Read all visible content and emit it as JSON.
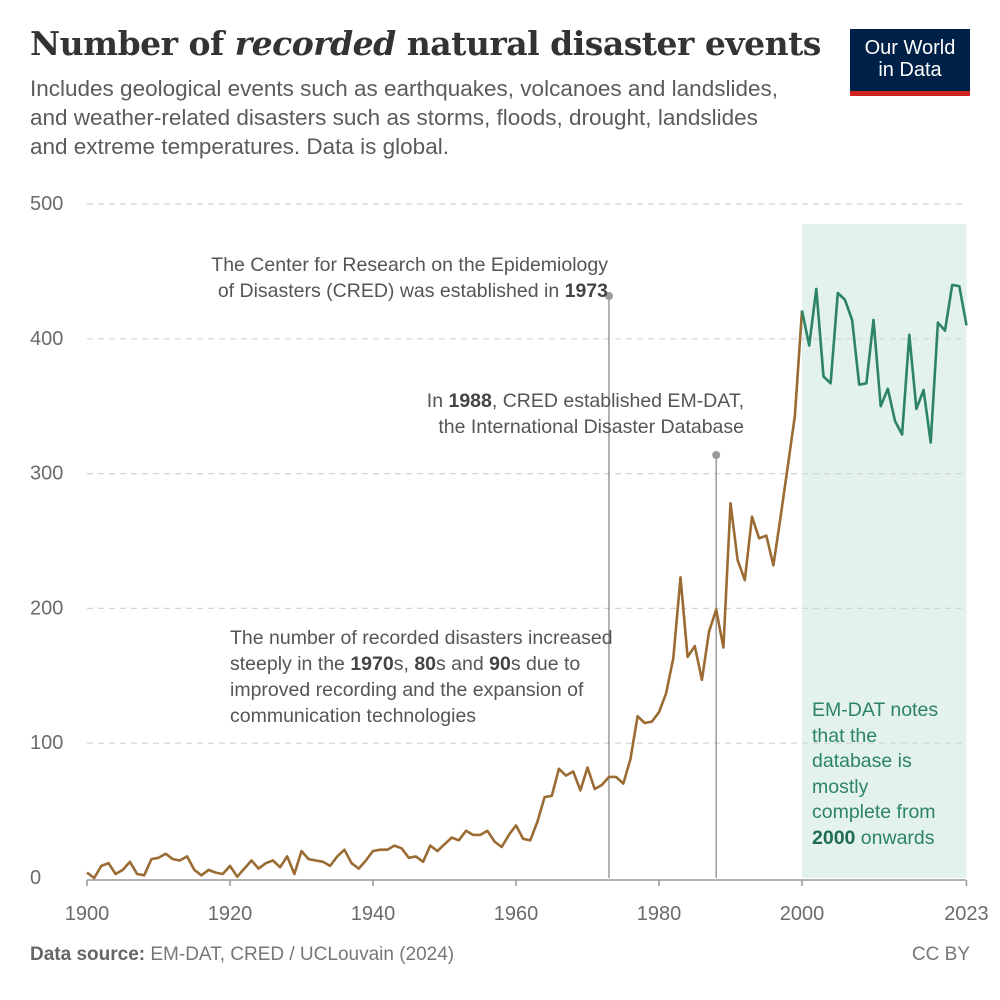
{
  "title": {
    "before": "Number of ",
    "italic": "recorded",
    "after": " natural disaster events"
  },
  "subtitle": "Includes geological events such as earthquakes, volcanoes and landslides, and weather-related disasters such as storms, floods, drought, landslides and extreme temperatures. Data is global.",
  "logo": {
    "line1": "Our World",
    "line2": "in Data",
    "colors": {
      "bg": "#002147",
      "accent": "#ce261e"
    }
  },
  "annotations": {
    "cred": {
      "line1": "The Center for Research on the Epidemiology",
      "line2a": "of Disasters (CRED) was established in ",
      "line2b": "1973"
    },
    "emdat": {
      "line1a": "In ",
      "line1b": "1988",
      "line1c": ", CRED established EM-DAT,",
      "line2": "the International Disaster Database"
    },
    "increase": {
      "l1": "The number of recorded disasters increased",
      "l2a": "steeply in the ",
      "l2b": "1970",
      "l2c": "s, ",
      "l2d": "80",
      "l2e": "s and ",
      "l2f": "90",
      "l2g": "s due to",
      "l3": "improved recording and the expansion of",
      "l4": "communication technologies"
    },
    "complete": {
      "l1": "EM-DAT notes",
      "l2": "that the",
      "l3": "database is",
      "l4": "mostly",
      "l5": "complete from",
      "l6a": "2000",
      "l6b": " onwards"
    }
  },
  "footer": {
    "source_label": "Data source:",
    "source": " EM-DAT, CRED / UCLouvain (2024)",
    "license": "CC BY"
  },
  "chart_data": {
    "type": "line",
    "xlim": [
      1900,
      2023
    ],
    "ylim": [
      0,
      500
    ],
    "x_ticks": [
      "1900",
      "1920",
      "1940",
      "1960",
      "1980",
      "2000",
      "2023"
    ],
    "y_ticks": [
      "0",
      "100",
      "200",
      "300",
      "400",
      "500"
    ],
    "grid": "horizontal dashed",
    "highlight_range": [
      2000,
      2023
    ],
    "event_markers": [
      1973,
      1988
    ],
    "colors": {
      "before_2000": "#9a6b33",
      "from_2000": "#2c8465",
      "shade": "#e3f2ec"
    },
    "x": [
      1900,
      1901,
      1902,
      1903,
      1904,
      1905,
      1906,
      1907,
      1908,
      1909,
      1910,
      1911,
      1912,
      1913,
      1914,
      1915,
      1916,
      1917,
      1918,
      1919,
      1920,
      1921,
      1922,
      1923,
      1924,
      1925,
      1926,
      1927,
      1928,
      1929,
      1930,
      1931,
      1932,
      1933,
      1934,
      1935,
      1936,
      1937,
      1938,
      1939,
      1940,
      1941,
      1942,
      1943,
      1944,
      1945,
      1946,
      1947,
      1948,
      1949,
      1950,
      1951,
      1952,
      1953,
      1954,
      1955,
      1956,
      1957,
      1958,
      1959,
      1960,
      1961,
      1962,
      1963,
      1964,
      1965,
      1966,
      1967,
      1968,
      1969,
      1970,
      1971,
      1972,
      1973,
      1974,
      1975,
      1976,
      1977,
      1978,
      1979,
      1980,
      1981,
      1982,
      1983,
      1984,
      1985,
      1986,
      1987,
      1988,
      1989,
      1990,
      1991,
      1992,
      1993,
      1994,
      1995,
      1996,
      1997,
      1998,
      1999,
      2000,
      2001,
      2002,
      2003,
      2004,
      2005,
      2006,
      2007,
      2008,
      2009,
      2010,
      2011,
      2012,
      2013,
      2014,
      2015,
      2016,
      2017,
      2018,
      2019,
      2020,
      2021,
      2022,
      2023
    ],
    "values": [
      4,
      0,
      9,
      11,
      3,
      6,
      12,
      3,
      2,
      14,
      15,
      18,
      14,
      13,
      16,
      6,
      2,
      6,
      4,
      3,
      9,
      1,
      7,
      13,
      7,
      11,
      13,
      8,
      16,
      3,
      20,
      14,
      13,
      12,
      9,
      16,
      21,
      11,
      7,
      13,
      20,
      21,
      21,
      24,
      22,
      15,
      16,
      12,
      24,
      20,
      25,
      30,
      28,
      35,
      32,
      32,
      35,
      27,
      23,
      32,
      39,
      29,
      28,
      42,
      60,
      61,
      81,
      76,
      79,
      65,
      82,
      66,
      69,
      75,
      75,
      70,
      88,
      120,
      115,
      116,
      123,
      137,
      163,
      223,
      164,
      172,
      147,
      183,
      199,
      171,
      278,
      236,
      221,
      268,
      252,
      254,
      232,
      268,
      305,
      343,
      421,
      395,
      437,
      372,
      367,
      434,
      429,
      414,
      366,
      367,
      414,
      350,
      363,
      339,
      329,
      403,
      348,
      362,
      323,
      412,
      406,
      440,
      439,
      410
    ]
  }
}
